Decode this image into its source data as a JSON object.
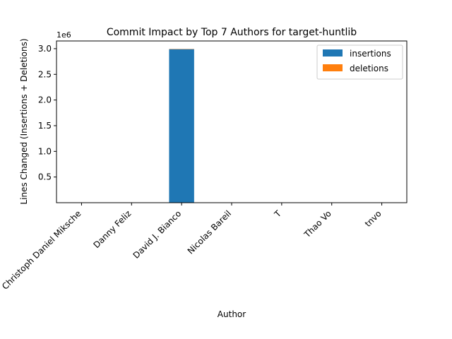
{
  "chart_data": {
    "type": "bar",
    "stacked": true,
    "title": "Commit Impact by Top 7 Authors for target-huntlib",
    "xlabel": "Author",
    "ylabel": "Lines Changed (Insertions + Deletions)",
    "y_offset_text": "1e6",
    "categories": [
      "Christoph Daniel Miksche",
      "Danny Feliz",
      "David J. Bianco",
      "Nicolas Bareil",
      "T",
      "Thao Vo",
      "tnvo"
    ],
    "series": [
      {
        "name": "insertions",
        "color": "#1f77b4",
        "values": [
          1500,
          800,
          2990000,
          400,
          200,
          300,
          250
        ]
      },
      {
        "name": "deletions",
        "color": "#ff7f0e",
        "values": [
          300,
          150,
          5000,
          80,
          40,
          60,
          50
        ]
      }
    ],
    "ylim": [
      0,
      3150000
    ],
    "yticks": [
      500000,
      1000000,
      1500000,
      2000000,
      2500000,
      3000000
    ],
    "ytick_labels": [
      "0.5",
      "1.0",
      "1.5",
      "2.0",
      "2.5",
      "3.0"
    ],
    "legend_position": "top-right",
    "grid": false
  }
}
